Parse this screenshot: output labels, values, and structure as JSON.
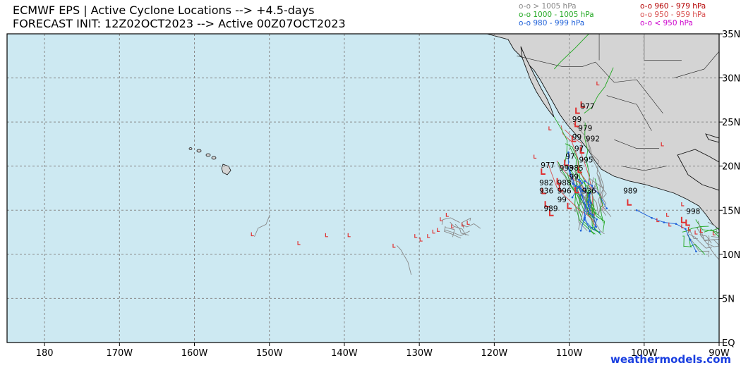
{
  "header": {
    "title_line1": "ECMWF EPS | Active Cyclone Locations --> +4.5-days",
    "title_line2": "FORECAST INIT: 12Z02OCT2023 --> Active 00Z07OCT2023"
  },
  "legend": {
    "items": [
      {
        "label": "o-o > 1005 hPa",
        "color": "#888888"
      },
      {
        "label": "o-o 1000 - 1005 hPa",
        "color": "#22a822"
      },
      {
        "label": "o-o 980 - 999 hPa",
        "color": "#1d5fd8"
      },
      {
        "label": "o-o 960 - 979 hPa",
        "color": "#b40000"
      },
      {
        "label": "o-o 950 - 959 hPa",
        "color": "#d85050"
      },
      {
        "label": "o-o < 950 hPa",
        "color": "#cc00cc"
      }
    ]
  },
  "map": {
    "ocean_color": "#cde9f2",
    "land_color": "#d4d4d4",
    "lon_labels": [
      "180",
      "170W",
      "160W",
      "150W",
      "140W",
      "130W",
      "120W",
      "110W",
      "100W",
      "90W"
    ],
    "lat_labels": [
      "35N",
      "30N",
      "25N",
      "20N",
      "15N",
      "10N",
      "5N",
      "EQ"
    ],
    "low_marker_color": "#e03030",
    "center_labels": [
      {
        "text": "977",
        "lon": -108.5,
        "lat": 26.5
      },
      {
        "text": "99",
        "lon": -109.6,
        "lat": 25.0
      },
      {
        "text": "979",
        "lon": -108.8,
        "lat": 24.0
      },
      {
        "text": "99",
        "lon": -109.6,
        "lat": 23.0
      },
      {
        "text": "992",
        "lon": -107.8,
        "lat": 22.8
      },
      {
        "text": "97",
        "lon": -109.3,
        "lat": 21.7
      },
      {
        "text": "97",
        "lon": -110.5,
        "lat": 20.8
      },
      {
        "text": "995",
        "lon": -108.7,
        "lat": 20.4
      },
      {
        "text": "977",
        "lon": -113.8,
        "lat": 19.8
      },
      {
        "text": "993",
        "lon": -111.3,
        "lat": 19.5
      },
      {
        "text": "985",
        "lon": -110.0,
        "lat": 19.5
      },
      {
        "text": "99",
        "lon": -110.0,
        "lat": 18.5
      },
      {
        "text": "982",
        "lon": -114.0,
        "lat": 17.8
      },
      {
        "text": "988",
        "lon": -111.6,
        "lat": 17.8
      },
      {
        "text": "936",
        "lon": -114.0,
        "lat": 16.9
      },
      {
        "text": "996",
        "lon": -111.6,
        "lat": 16.9
      },
      {
        "text": "936",
        "lon": -108.3,
        "lat": 16.9
      },
      {
        "text": "989",
        "lon": -102.8,
        "lat": 16.9
      },
      {
        "text": "99",
        "lon": -111.6,
        "lat": 15.9
      },
      {
        "text": "989",
        "lon": -113.4,
        "lat": 14.9
      },
      {
        "text": "998",
        "lon": -94.4,
        "lat": 14.6
      }
    ]
  },
  "credit": "weathermodels.com"
}
